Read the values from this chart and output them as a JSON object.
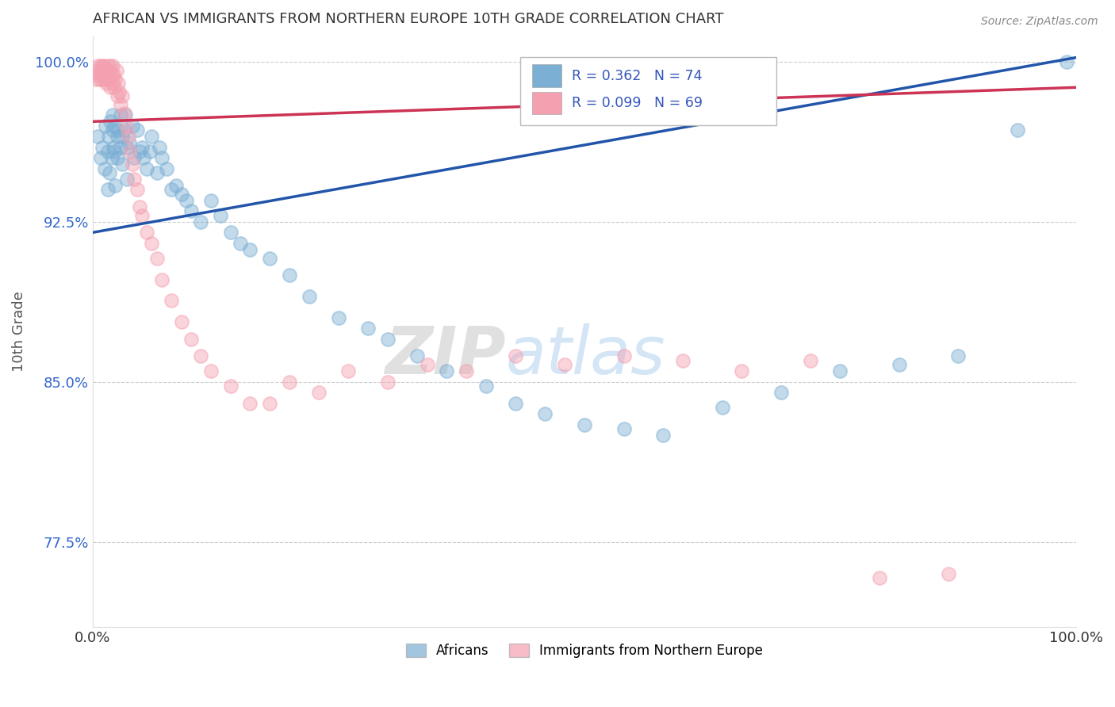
{
  "title": "AFRICAN VS IMMIGRANTS FROM NORTHERN EUROPE 10TH GRADE CORRELATION CHART",
  "source": "Source: ZipAtlas.com",
  "ylabel": "10th Grade",
  "watermark": "ZIPatlas",
  "xlim": [
    0.0,
    1.0
  ],
  "ylim": [
    0.735,
    1.012
  ],
  "xticks": [
    0.0,
    1.0
  ],
  "xticklabels": [
    "0.0%",
    "100.0%"
  ],
  "yticks": [
    0.775,
    0.85,
    0.925,
    1.0
  ],
  "yticklabels": [
    "77.5%",
    "85.0%",
    "92.5%",
    "100.0%"
  ],
  "blue_R": 0.362,
  "blue_N": 74,
  "pink_R": 0.099,
  "pink_N": 69,
  "blue_color": "#7BAFD4",
  "pink_color": "#F4A0B0",
  "blue_line_color": "#2255AA",
  "pink_line_color": "#CC3355",
  "blue_line_x0": 0.0,
  "blue_line_y0": 0.92,
  "blue_line_x1": 1.0,
  "blue_line_y1": 1.002,
  "pink_line_x0": 0.0,
  "pink_line_y0": 0.972,
  "pink_line_x1": 1.0,
  "pink_line_y1": 0.988,
  "blue_scatter_x": [
    0.005,
    0.008,
    0.01,
    0.012,
    0.013,
    0.015,
    0.015,
    0.016,
    0.017,
    0.018,
    0.019,
    0.02,
    0.02,
    0.021,
    0.022,
    0.022,
    0.023,
    0.025,
    0.025,
    0.026,
    0.028,
    0.028,
    0.03,
    0.03,
    0.032,
    0.033,
    0.035,
    0.035,
    0.037,
    0.04,
    0.042,
    0.045,
    0.048,
    0.05,
    0.052,
    0.055,
    0.058,
    0.06,
    0.065,
    0.068,
    0.07,
    0.075,
    0.08,
    0.085,
    0.09,
    0.095,
    0.1,
    0.11,
    0.12,
    0.13,
    0.14,
    0.15,
    0.16,
    0.18,
    0.2,
    0.22,
    0.25,
    0.28,
    0.3,
    0.33,
    0.36,
    0.4,
    0.43,
    0.46,
    0.5,
    0.54,
    0.58,
    0.64,
    0.7,
    0.76,
    0.82,
    0.88,
    0.94,
    0.99
  ],
  "blue_scatter_y": [
    0.965,
    0.955,
    0.96,
    0.95,
    0.97,
    0.958,
    0.94,
    0.965,
    0.948,
    0.972,
    0.955,
    0.975,
    0.968,
    0.96,
    0.958,
    0.97,
    0.942,
    0.965,
    0.955,
    0.968,
    0.96,
    0.975,
    0.965,
    0.952,
    0.968,
    0.975,
    0.96,
    0.945,
    0.962,
    0.97,
    0.955,
    0.968,
    0.958,
    0.96,
    0.955,
    0.95,
    0.958,
    0.965,
    0.948,
    0.96,
    0.955,
    0.95,
    0.94,
    0.942,
    0.938,
    0.935,
    0.93,
    0.925,
    0.935,
    0.928,
    0.92,
    0.915,
    0.912,
    0.908,
    0.9,
    0.89,
    0.88,
    0.875,
    0.87,
    0.862,
    0.855,
    0.848,
    0.84,
    0.835,
    0.83,
    0.828,
    0.825,
    0.838,
    0.845,
    0.855,
    0.858,
    0.862,
    0.968,
    1.0
  ],
  "pink_scatter_x": [
    0.003,
    0.004,
    0.005,
    0.006,
    0.007,
    0.008,
    0.008,
    0.009,
    0.01,
    0.01,
    0.011,
    0.012,
    0.012,
    0.013,
    0.014,
    0.014,
    0.015,
    0.015,
    0.016,
    0.017,
    0.018,
    0.018,
    0.019,
    0.02,
    0.02,
    0.021,
    0.022,
    0.023,
    0.024,
    0.025,
    0.026,
    0.027,
    0.028,
    0.03,
    0.032,
    0.034,
    0.036,
    0.038,
    0.04,
    0.042,
    0.045,
    0.048,
    0.05,
    0.055,
    0.06,
    0.065,
    0.07,
    0.08,
    0.09,
    0.1,
    0.11,
    0.12,
    0.14,
    0.16,
    0.18,
    0.2,
    0.23,
    0.26,
    0.3,
    0.34,
    0.38,
    0.43,
    0.48,
    0.54,
    0.6,
    0.66,
    0.73,
    0.8,
    0.87
  ],
  "pink_scatter_y": [
    0.992,
    0.996,
    0.998,
    0.994,
    0.992,
    0.998,
    0.996,
    0.992,
    0.998,
    0.994,
    0.998,
    0.996,
    0.992,
    0.996,
    0.994,
    0.99,
    0.998,
    0.992,
    0.996,
    0.992,
    0.998,
    0.988,
    0.994,
    0.998,
    0.99,
    0.994,
    0.988,
    0.992,
    0.996,
    0.984,
    0.99,
    0.986,
    0.98,
    0.984,
    0.976,
    0.97,
    0.965,
    0.958,
    0.952,
    0.945,
    0.94,
    0.932,
    0.928,
    0.92,
    0.915,
    0.908,
    0.898,
    0.888,
    0.878,
    0.87,
    0.862,
    0.855,
    0.848,
    0.84,
    0.84,
    0.85,
    0.845,
    0.855,
    0.85,
    0.858,
    0.855,
    0.862,
    0.858,
    0.862,
    0.86,
    0.855,
    0.86,
    0.758,
    0.76
  ]
}
